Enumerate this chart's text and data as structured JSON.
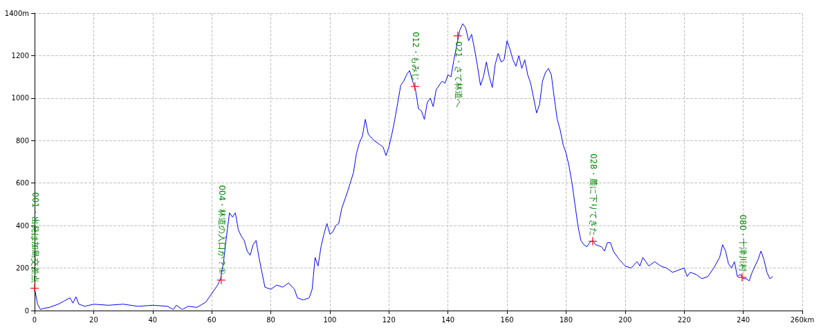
{
  "chart_data": {
    "type": "line",
    "xlim": [
      0,
      260
    ],
    "ylim": [
      0,
      1400
    ],
    "xticks": [
      0,
      20,
      40,
      60,
      80,
      100,
      120,
      140,
      160,
      180,
      200,
      220,
      240,
      {
        "value": 260,
        "label": "260km"
      }
    ],
    "yticks": [
      0,
      200,
      400,
      600,
      800,
      1000,
      1200,
      {
        "value": 1400,
        "label": "1400m"
      }
    ],
    "grid": true,
    "series": [
      {
        "color": "#0000ff",
        "marker": "none",
        "x": [
          0,
          1,
          2,
          3,
          5,
          8,
          10,
          12,
          13,
          14,
          15,
          17,
          20,
          25,
          30,
          35,
          40,
          45,
          47,
          48,
          50,
          52,
          55,
          58,
          60,
          62,
          63,
          64,
          65,
          66,
          67,
          68,
          69,
          70,
          71,
          72,
          73,
          74,
          75,
          76,
          77,
          78,
          80,
          82,
          84,
          86,
          88,
          89,
          91,
          93,
          94,
          95,
          96,
          97,
          98,
          99,
          100,
          101,
          102,
          103,
          104,
          106,
          108,
          109,
          110,
          111,
          112,
          113,
          115,
          117,
          118,
          119,
          120,
          121,
          122,
          123,
          124,
          125,
          126,
          127,
          128,
          129,
          130,
          131,
          132,
          133,
          134,
          135,
          136,
          138,
          139,
          140,
          141,
          142,
          143,
          144,
          145,
          146,
          147,
          148,
          149,
          150,
          151,
          152,
          153,
          154,
          155,
          156,
          157,
          158,
          159,
          160,
          161,
          162,
          163,
          164,
          165,
          166,
          167,
          168,
          169,
          170,
          171,
          172,
          173,
          174,
          175,
          176,
          177,
          178,
          179,
          180,
          181,
          182,
          183,
          184,
          185,
          186,
          187,
          188,
          189,
          190,
          192,
          193,
          194,
          195,
          196,
          198,
          200,
          202,
          204,
          205,
          206,
          208,
          210,
          212,
          214,
          216,
          218,
          220,
          221,
          222,
          224,
          226,
          228,
          230,
          232,
          233,
          234,
          235,
          236,
          237,
          238,
          239,
          240,
          241,
          242,
          243,
          245,
          246,
          247,
          248,
          249,
          250
        ],
        "values": [
          105,
          30,
          5,
          10,
          15,
          30,
          45,
          60,
          35,
          65,
          30,
          20,
          30,
          25,
          30,
          20,
          25,
          20,
          5,
          25,
          5,
          20,
          15,
          40,
          80,
          120,
          150,
          230,
          350,
          460,
          440,
          460,
          380,
          350,
          330,
          280,
          260,
          310,
          330,
          250,
          180,
          110,
          100,
          120,
          110,
          130,
          100,
          60,
          50,
          60,
          100,
          250,
          210,
          300,
          360,
          410,
          360,
          370,
          400,
          410,
          480,
          560,
          650,
          740,
          790,
          820,
          900,
          830,
          800,
          780,
          770,
          730,
          770,
          830,
          900,
          980,
          1060,
          1080,
          1110,
          1130,
          1080,
          1040,
          950,
          940,
          900,
          980,
          1000,
          960,
          1040,
          1080,
          1070,
          1110,
          1100,
          1180,
          1250,
          1320,
          1350,
          1330,
          1270,
          1300,
          1230,
          1150,
          1060,
          1100,
          1170,
          1100,
          1050,
          1160,
          1210,
          1170,
          1180,
          1270,
          1230,
          1180,
          1150,
          1200,
          1140,
          1180,
          1110,
          1070,
          1000,
          930,
          970,
          1080,
          1120,
          1140,
          1110,
          1000,
          900,
          850,
          780,
          740,
          680,
          600,
          500,
          400,
          330,
          310,
          300,
          320,
          330,
          310,
          300,
          280,
          320,
          320,
          280,
          240,
          210,
          200,
          230,
          210,
          250,
          210,
          230,
          210,
          200,
          180,
          190,
          200,
          160,
          180,
          170,
          150,
          160,
          200,
          250,
          310,
          280,
          220,
          200,
          230,
          160,
          170,
          150,
          150,
          140,
          180,
          240,
          280,
          240,
          180,
          150,
          160
        ]
      },
      {
        "type": "scatter",
        "color": "#ff0000",
        "marker": "cross",
        "x": [
          0,
          63.2,
          128.8,
          143.3,
          189,
          239.6
        ],
        "values": [
          105,
          143,
          1055,
          1293,
          326,
          156
        ]
      }
    ],
    "annotations": [
      {
        "text": "001・出発は加島交差点",
        "x": 0,
        "y": 105
      },
      {
        "text": "004・林道の入口か？①",
        "x": 63.2,
        "y": 143
      },
      {
        "text": "012・もみじ",
        "x": 128.8,
        "y": 1055
      },
      {
        "text": "021・さて林道へ",
        "x": 143.3,
        "y": 1293
      },
      {
        "text": "028・麓に下りてきた",
        "x": 189,
        "y": 326
      },
      {
        "text": "080・十津川村",
        "x": 239.6,
        "y": 156
      }
    ]
  }
}
